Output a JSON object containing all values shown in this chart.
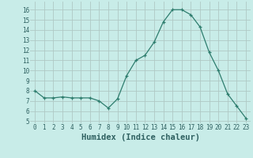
{
  "x": [
    0,
    1,
    2,
    3,
    4,
    5,
    6,
    7,
    8,
    9,
    10,
    11,
    12,
    13,
    14,
    15,
    16,
    17,
    18,
    19,
    20,
    21,
    22,
    23
  ],
  "y": [
    8.0,
    7.3,
    7.3,
    7.4,
    7.3,
    7.3,
    7.3,
    7.0,
    6.3,
    7.2,
    9.5,
    11.0,
    11.5,
    12.8,
    14.8,
    16.0,
    16.0,
    15.5,
    14.3,
    11.8,
    10.0,
    7.7,
    6.5,
    5.3
  ],
  "xlabel": "Humidex (Indice chaleur)",
  "xlim": [
    -0.5,
    23.5
  ],
  "ylim": [
    4.8,
    16.8
  ],
  "yticks": [
    5,
    6,
    7,
    8,
    9,
    10,
    11,
    12,
    13,
    14,
    15,
    16
  ],
  "xticks": [
    0,
    1,
    2,
    3,
    4,
    5,
    6,
    7,
    8,
    9,
    10,
    11,
    12,
    13,
    14,
    15,
    16,
    17,
    18,
    19,
    20,
    21,
    22,
    23
  ],
  "xtick_labels": [
    "0",
    "1",
    "2",
    "3",
    "4",
    "5",
    "6",
    "7",
    "8",
    "9",
    "10",
    "11",
    "12",
    "13",
    "14",
    "15",
    "16",
    "17",
    "18",
    "19",
    "20",
    "21",
    "22",
    "23"
  ],
  "line_color": "#2e7d6e",
  "marker": "+",
  "marker_size": 3,
  "line_width": 0.9,
  "bg_color": "#c8ece8",
  "grid_color": "#afc9c5",
  "font_color": "#2e6060",
  "tick_fontsize": 5.5,
  "xlabel_fontsize": 7.5
}
